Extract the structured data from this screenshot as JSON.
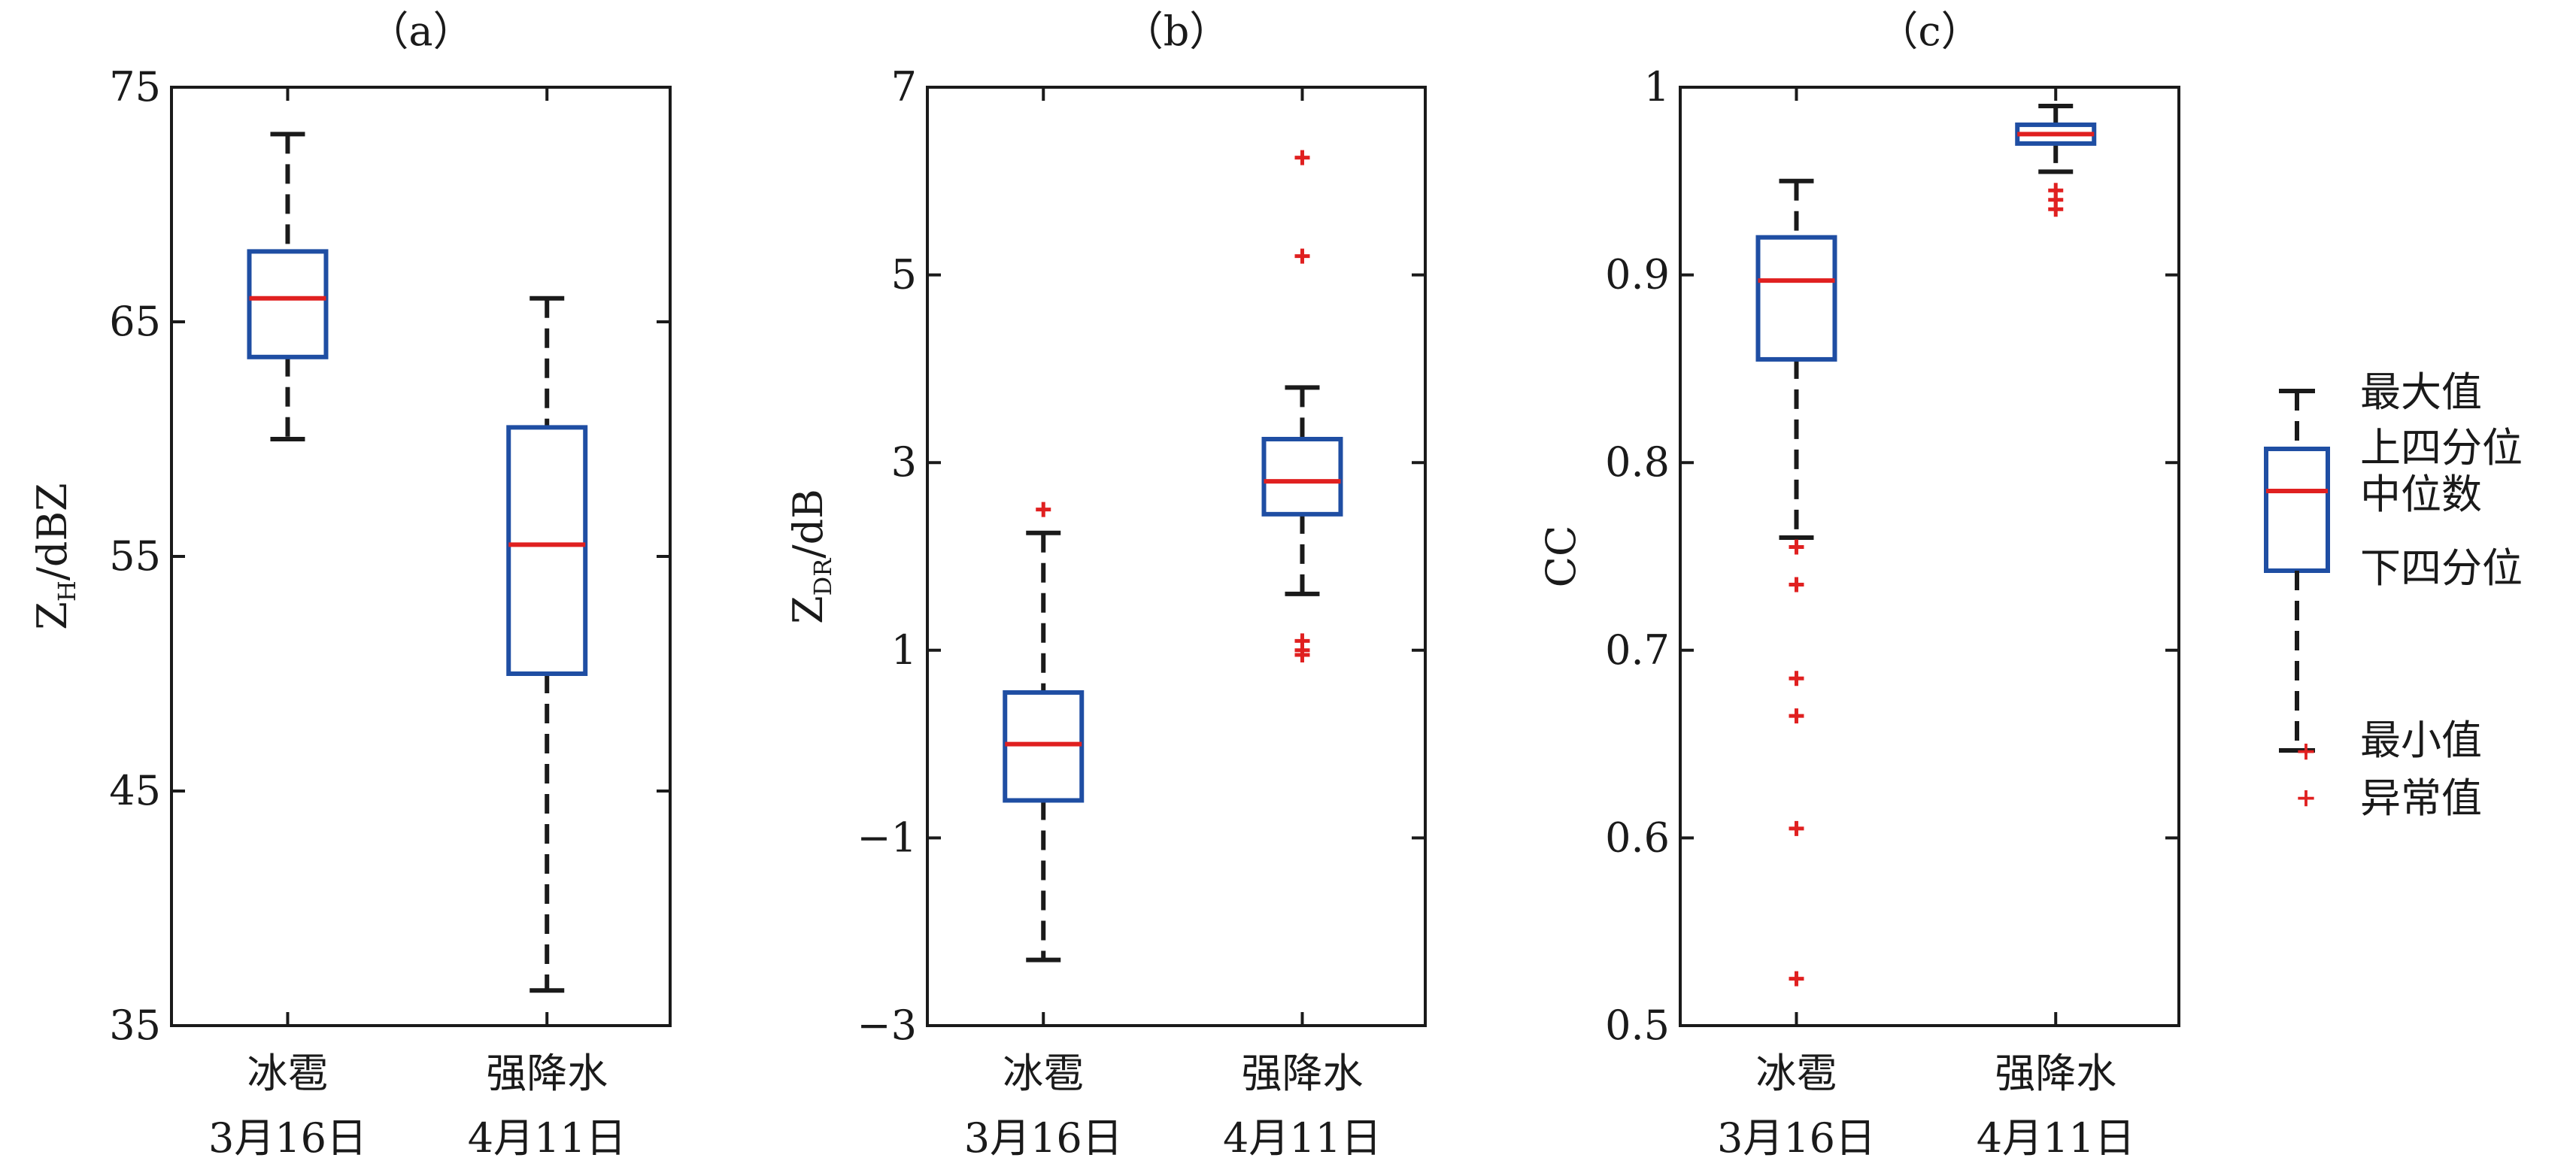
{
  "chart_data": [
    {
      "type": "box",
      "title": "（a）",
      "ylabel": {
        "main": "Z",
        "sub": "H",
        "rest": "/dBZ"
      },
      "ylim": [
        35,
        75
      ],
      "yticks": [
        35,
        45,
        55,
        65,
        75
      ],
      "ytick_labels": [
        "35",
        "45",
        "55",
        "65",
        "75"
      ],
      "categories": [
        {
          "line1": "冰雹",
          "line2": "3月16日"
        },
        {
          "line1": "强降水",
          "line2": "4月11日"
        }
      ],
      "boxes": [
        {
          "whisker_low": 60,
          "q1": 63.5,
          "median": 66,
          "q3": 68,
          "whisker_high": 73,
          "outliers": []
        },
        {
          "whisker_low": 36.5,
          "q1": 50,
          "median": 55.5,
          "q3": 60.5,
          "whisker_high": 66,
          "outliers": []
        }
      ]
    },
    {
      "type": "box",
      "title": "（b）",
      "ylabel": {
        "main": "Z",
        "sub": "DR",
        "rest": "/dB"
      },
      "ylim": [
        -3,
        7
      ],
      "yticks": [
        -3,
        -1,
        1,
        3,
        5,
        7
      ],
      "ytick_labels": [
        "−3",
        "−1",
        "1",
        "3",
        "5",
        "7"
      ],
      "categories": [
        {
          "line1": "冰雹",
          "line2": "3月16日"
        },
        {
          "line1": "强降水",
          "line2": "4月11日"
        }
      ],
      "boxes": [
        {
          "whisker_low": -2.3,
          "q1": -0.6,
          "median": 0,
          "q3": 0.55,
          "whisker_high": 2.25,
          "outliers": [
            2.5
          ]
        },
        {
          "whisker_low": 1.6,
          "q1": 2.45,
          "median": 2.8,
          "q3": 3.25,
          "whisker_high": 3.8,
          "outliers": [
            6.25,
            5.2,
            1.1,
            1.0,
            0.95
          ]
        }
      ]
    },
    {
      "type": "box",
      "title": "（c）",
      "ylabel": {
        "main": "CC",
        "sub": "",
        "rest": ""
      },
      "ylim": [
        0.5,
        1.0
      ],
      "yticks": [
        0.5,
        0.6,
        0.7,
        0.8,
        0.9,
        1.0
      ],
      "ytick_labels": [
        "0.5",
        "0.6",
        "0.7",
        "0.8",
        "0.9",
        "1"
      ],
      "categories": [
        {
          "line1": "冰雹",
          "line2": "3月16日"
        },
        {
          "line1": "强降水",
          "line2": "4月11日"
        }
      ],
      "boxes": [
        {
          "whisker_low": 0.76,
          "q1": 0.855,
          "median": 0.897,
          "q3": 0.92,
          "whisker_high": 0.95,
          "outliers": [
            0.755,
            0.735,
            0.685,
            0.665,
            0.605,
            0.525
          ]
        },
        {
          "whisker_low": 0.955,
          "q1": 0.97,
          "median": 0.975,
          "q3": 0.98,
          "whisker_high": 0.99,
          "outliers": [
            0.945,
            0.94,
            0.935
          ]
        }
      ]
    }
  ],
  "legend": {
    "placement": "right",
    "max_label": "最大值",
    "q3_label": "上四分位",
    "median_label": "中位数",
    "q1_label": "下四分位",
    "min_label": "最小值",
    "outlier_label": "异常值"
  },
  "colors": {
    "box": "#1f4ea3",
    "median": "#e02020",
    "whisker": "#1a1a1a",
    "outlier": "#e02020",
    "frame": "#1a1a1a"
  }
}
